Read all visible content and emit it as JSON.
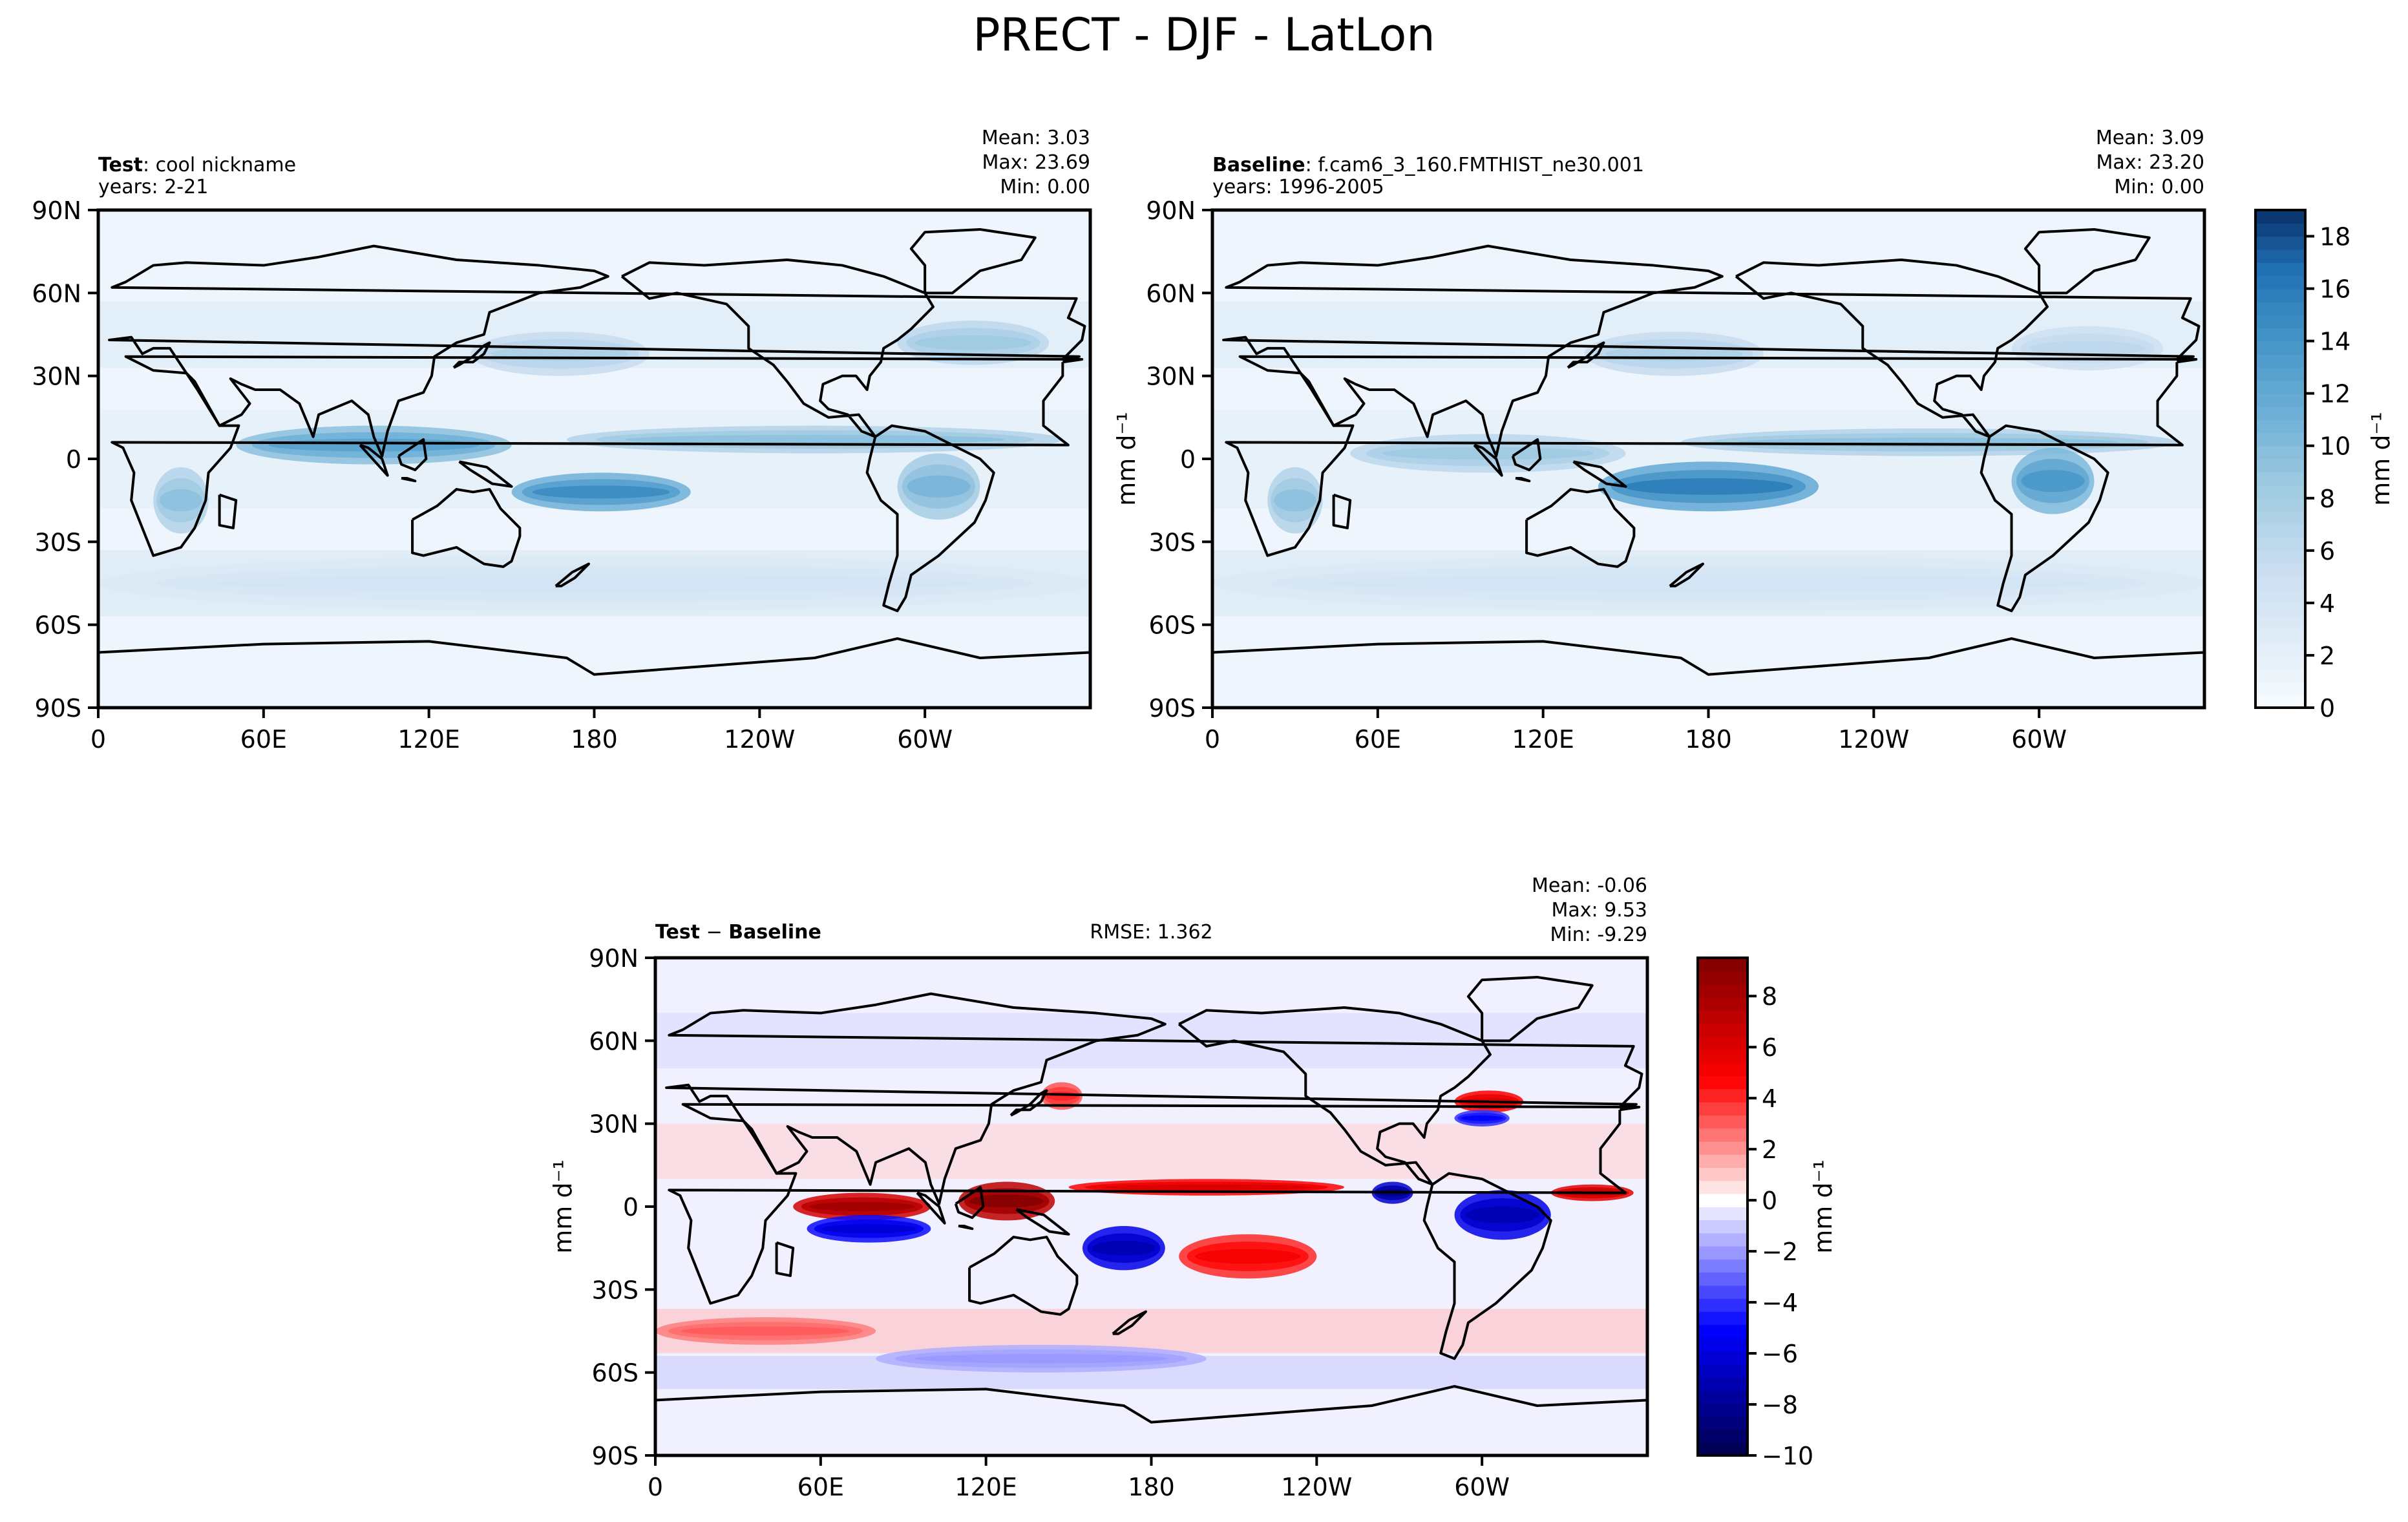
{
  "figure": {
    "title": "PRECT - DJF - LatLon"
  },
  "chart_data": [
    {
      "type": "heatmap",
      "panel": "test",
      "title_bold": "Test",
      "title_rest": ": cool nickname",
      "subtitle": "years: 2-21",
      "stats": [
        "Mean:  3.03",
        "Max: 23.69",
        "Min:  0.00"
      ],
      "xticks": [
        "0",
        "60E",
        "120E",
        "180",
        "120W",
        "60W"
      ],
      "yticks": [
        "90N",
        "60N",
        "30N",
        "0",
        "30S",
        "60S",
        "90S"
      ],
      "ylabel": "",
      "colormap": "Blues",
      "precip_bands": [
        {
          "lat": 5,
          "lon_from": 50,
          "lon_to": 150,
          "value": 12,
          "width": 7
        },
        {
          "lat": -12,
          "lon_from": 150,
          "lon_to": 215,
          "value": 14,
          "width": 7
        },
        {
          "lat": 7,
          "lon_from": 170,
          "lon_to": 350,
          "value": 9,
          "width": 5
        },
        {
          "lat": 38,
          "lon_from": 135,
          "lon_to": 200,
          "value": 7,
          "width": 8
        },
        {
          "lat": 42,
          "lon_from": 290,
          "lon_to": 345,
          "value": 8,
          "width": 8
        },
        {
          "lat": -15,
          "lon_from": 20,
          "lon_to": 40,
          "value": 9,
          "width": 12
        },
        {
          "lat": -10,
          "lon_from": 290,
          "lon_to": 320,
          "value": 10,
          "width": 12
        },
        {
          "lat": -45,
          "lon_from": 0,
          "lon_to": 360,
          "value": 4,
          "width": 10
        }
      ]
    },
    {
      "type": "heatmap",
      "panel": "baseline",
      "title_bold": "Baseline",
      "title_rest": ": f.cam6_3_160.FMTHIST_ne30.001",
      "subtitle": "years: 1996-2005",
      "stats": [
        "Mean:  3.09",
        "Max: 23.20",
        "Min:  0.00"
      ],
      "xticks": [
        "0",
        "60E",
        "120E",
        "180",
        "120W",
        "60W"
      ],
      "yticks": [
        "90N",
        "60N",
        "30N",
        "0",
        "30S",
        "60S",
        "90S"
      ],
      "ylabel": "mm d⁻¹",
      "colormap": "Blues",
      "colorbar": {
        "label": "mm d⁻¹",
        "min": 0,
        "max": 19,
        "ticks": [
          0,
          2,
          4,
          6,
          8,
          10,
          12,
          14,
          16,
          18
        ]
      },
      "precip_bands": [
        {
          "lat": 2,
          "lon_from": 50,
          "lon_to": 150,
          "value": 8,
          "width": 7
        },
        {
          "lat": -10,
          "lon_from": 140,
          "lon_to": 220,
          "value": 15,
          "width": 9
        },
        {
          "lat": 6,
          "lon_from": 170,
          "lon_to": 350,
          "value": 9,
          "width": 5
        },
        {
          "lat": 38,
          "lon_from": 135,
          "lon_to": 200,
          "value": 7,
          "width": 8
        },
        {
          "lat": 40,
          "lon_from": 290,
          "lon_to": 345,
          "value": 6,
          "width": 8
        },
        {
          "lat": -15,
          "lon_from": 20,
          "lon_to": 40,
          "value": 9,
          "width": 12
        },
        {
          "lat": -8,
          "lon_from": 290,
          "lon_to": 320,
          "value": 13,
          "width": 12
        },
        {
          "lat": -45,
          "lon_from": 0,
          "lon_to": 360,
          "value": 4,
          "width": 10
        }
      ]
    },
    {
      "type": "heatmap",
      "panel": "difference",
      "title_bold": "Test",
      "title_mid": " − ",
      "title_bold2": "Baseline",
      "rmse": "RMSE: 1.362",
      "stats": [
        "Mean: -0.06",
        "Max:  9.53",
        "Min: -9.29"
      ],
      "xticks": [
        "0",
        "60E",
        "120E",
        "180",
        "120W",
        "60W"
      ],
      "yticks": [
        "90N",
        "60N",
        "30N",
        "0",
        "30S",
        "60S",
        "90S"
      ],
      "ylabel": "mm d⁻¹",
      "colormap": "seismic",
      "colorbar": {
        "label": "mm d⁻¹",
        "min": -10,
        "max": 9.5,
        "ticks": [
          -10,
          -8,
          -6,
          -4,
          -2,
          0,
          2,
          4,
          6,
          8
        ]
      },
      "anomaly_bands": [
        {
          "lat": 0,
          "lon_from": 50,
          "lon_to": 100,
          "value": 8,
          "width": 5
        },
        {
          "lat": -8,
          "lon_from": 55,
          "lon_to": 100,
          "value": -6,
          "width": 5
        },
        {
          "lat": 2,
          "lon_from": 110,
          "lon_to": 145,
          "value": 9,
          "width": 7
        },
        {
          "lat": -15,
          "lon_from": 155,
          "lon_to": 185,
          "value": -7,
          "width": 8
        },
        {
          "lat": -18,
          "lon_from": 190,
          "lon_to": 240,
          "value": 5,
          "width": 8
        },
        {
          "lat": 7,
          "lon_from": 150,
          "lon_to": 250,
          "value": 6,
          "width": 3
        },
        {
          "lat": 5,
          "lon_from": 260,
          "lon_to": 275,
          "value": -8,
          "width": 4
        },
        {
          "lat": -3,
          "lon_from": 290,
          "lon_to": 325,
          "value": -7,
          "width": 9
        },
        {
          "lat": 5,
          "lon_from": 325,
          "lon_to": 355,
          "value": 7,
          "width": 3
        },
        {
          "lat": 38,
          "lon_from": 290,
          "lon_to": 315,
          "value": 6,
          "width": 4
        },
        {
          "lat": 32,
          "lon_from": 290,
          "lon_to": 310,
          "value": -5,
          "width": 3
        },
        {
          "lat": 40,
          "lon_from": 140,
          "lon_to": 155,
          "value": 4,
          "width": 5
        },
        {
          "lat": -45,
          "lon_from": 0,
          "lon_to": 80,
          "value": 3,
          "width": 5
        },
        {
          "lat": -55,
          "lon_from": 80,
          "lon_to": 200,
          "value": -2,
          "width": 5
        }
      ]
    }
  ]
}
